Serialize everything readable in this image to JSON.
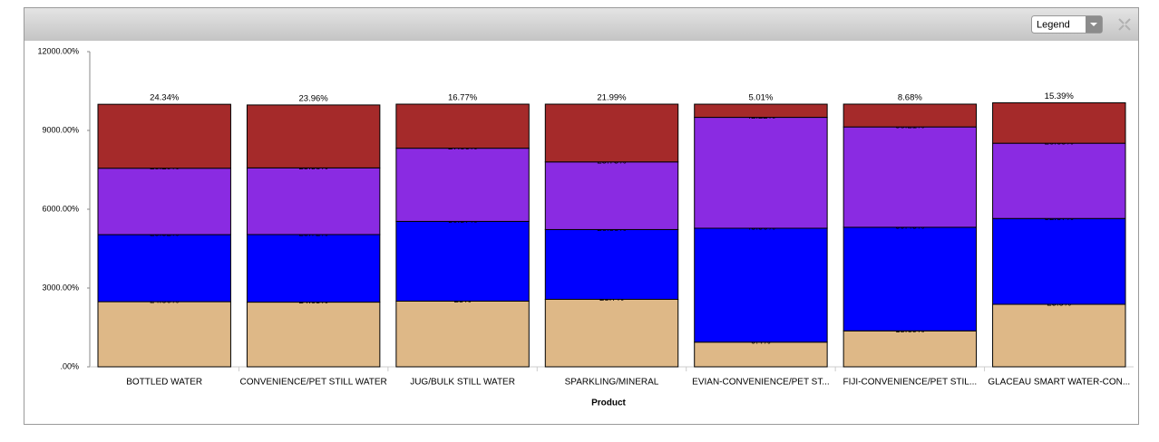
{
  "legend_button": "Legend",
  "chart_data": {
    "type": "stacked_bar",
    "x_label": "Product",
    "categories": [
      "BOTTLED WATER",
      "CONVENIENCE/PET STILL WATER",
      "JUG/BULK STILL WATER",
      "SPARKLING/MINERAL",
      "EVIAN-CONVENIENCE/PET ST...",
      "FIJI-CONVENIENCE/PET STIL...",
      "GLACEAU SMART WATER-CON..."
    ],
    "ylim": [
      0,
      12000
    ],
    "yticks": [
      {
        "value": 0,
        "label": ".00%"
      },
      {
        "value": 3000,
        "label": "3000.00%"
      },
      {
        "value": 6000,
        "label": "6000.00%"
      },
      {
        "value": 9000,
        "label": "9000.00%"
      },
      {
        "value": 12000,
        "label": "12000.00%"
      }
    ],
    "series": [
      {
        "color": "#deb887",
        "values": [
          2480,
          2463,
          2500,
          2570,
          940,
          1369,
          2380
        ],
        "value_labels": [
          "24.80%",
          "24.63%",
          "25%",
          "25.7%",
          "9.4%",
          "13.69%",
          "23.8%"
        ]
      },
      {
        "color": "#0000ff",
        "values": [
          2552,
          2572,
          3037,
          2656,
          4336,
          3943,
          3267
        ],
        "value_labels": [
          "25.52%",
          "25.72%",
          "30.37%",
          "26.56%",
          "43.36%",
          "39.43%",
          "32.67%"
        ]
      },
      {
        "color": "#8a2be2",
        "values": [
          2529,
          2538,
          2786,
          2575,
          4222,
          3821,
          2865
        ],
        "value_labels": [
          "25.29%",
          "25.38%",
          "27.86%",
          "25.75%",
          "42.22%",
          "38.21%",
          "28.65%"
        ]
      },
      {
        "color": "#a52a2a",
        "values": [
          2434,
          2396,
          1677,
          2199,
          501,
          868,
          1539
        ],
        "value_labels": [
          "24.34%",
          "23.96%",
          "16.77%",
          "21.99%",
          "5.01%",
          "8.68%",
          "15.39%"
        ]
      }
    ]
  }
}
